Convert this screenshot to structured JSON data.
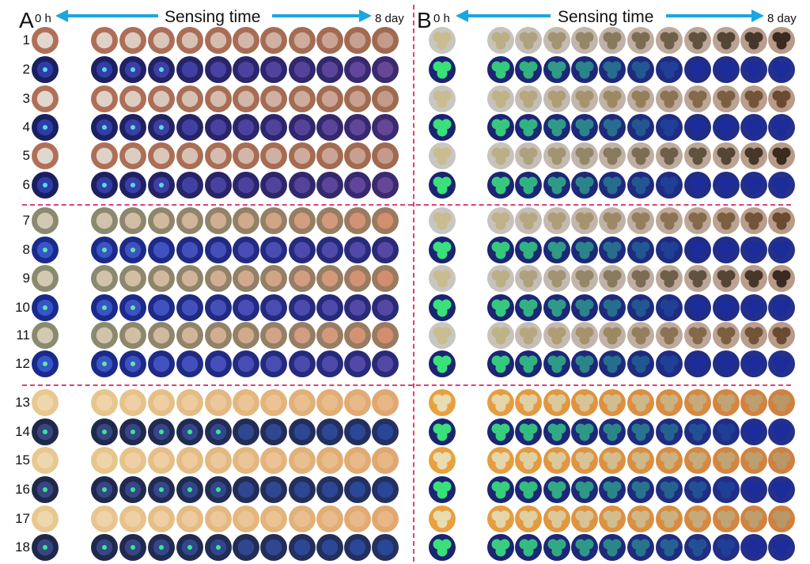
{
  "panel_a": {
    "letter": "A",
    "start_label": "0 h",
    "title": "Sensing time",
    "end_label": "8 day"
  },
  "panel_b": {
    "letter": "B",
    "start_label": "0 h",
    "title": "Sensing time",
    "end_label": "8 day"
  },
  "row_labels": [
    "1",
    "2",
    "3",
    "4",
    "5",
    "6",
    "7",
    "8",
    "9",
    "10",
    "11",
    "12",
    "13",
    "14",
    "15",
    "16",
    "17",
    "18"
  ],
  "colors": {
    "arrow": "#1aa6e0",
    "divider": "#e0407a",
    "a_daylight_food": "#a8604a",
    "a_uv_food": "#1e2a6e",
    "a_daylight_rice": "#8a8a6a",
    "a_uv_rice": "#2a3aa0",
    "a_daylight_orange": "#e0a060",
    "a_uv_orange": "#2a3a78",
    "b_daylight_label": "#c8bc90",
    "b_uv_green": "#3ae07a",
    "b_uv_dark": "#1c2a8a",
    "b_daylight_brown": "#6a4028"
  }
}
